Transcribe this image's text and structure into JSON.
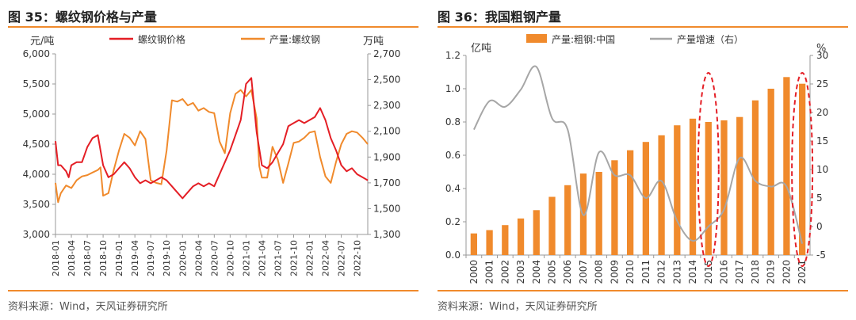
{
  "left": {
    "title": "图 35：螺纹钢价格与产量",
    "source": "资料来源：Wind，天风证券研究所",
    "unit_left": "元/吨",
    "unit_right": "万吨",
    "legend": [
      "螺纹钢价格",
      "产量:螺纹钢"
    ],
    "colors": {
      "price": "#E41E25",
      "output": "#F08A2C",
      "axis": "#999999"
    },
    "y_left_ticks": [
      "3,000",
      "3,500",
      "4,000",
      "4,500",
      "5,000",
      "5,500",
      "6,000"
    ],
    "y_right_ticks": [
      "1,300",
      "1,500",
      "1,700",
      "1,900",
      "2,100",
      "2,300",
      "2,500",
      "2,700"
    ],
    "x_ticks": [
      "2018-01",
      "2018-04",
      "2018-07",
      "2018-10",
      "2019-01",
      "2019-04",
      "2019-07",
      "2019-10",
      "2020-01",
      "2020-04",
      "2020-07",
      "2020-10",
      "2021-01",
      "2021-04",
      "2021-07",
      "2021-10",
      "2022-01",
      "2022-04",
      "2022-07",
      "2022-10"
    ],
    "chart_data": {
      "type": "line",
      "title": "图 35：螺纹钢价格与产量",
      "x_range": [
        0,
        59
      ],
      "ylim_left": [
        3000,
        6000
      ],
      "ylim_right": [
        1300,
        2700
      ],
      "series": [
        {
          "name": "螺纹钢价格",
          "axis": "left",
          "unit": "元/吨",
          "x": [
            0,
            0.5,
            1,
            2,
            2.5,
            3,
            4,
            5,
            6,
            7,
            8,
            8.7,
            9,
            10,
            11,
            12,
            13,
            14,
            15,
            16,
            17,
            18,
            19,
            20,
            21,
            22,
            23,
            24,
            25,
            26,
            27,
            28,
            29,
            30,
            31,
            32,
            33,
            34,
            35,
            36,
            37,
            38,
            39,
            40,
            41,
            42,
            43,
            44,
            45,
            46,
            47,
            48,
            49,
            50,
            51,
            52,
            53,
            54,
            55,
            56,
            57,
            58,
            59
          ],
          "values": [
            4550,
            4150,
            4150,
            4050,
            3950,
            4150,
            4200,
            4200,
            4450,
            4600,
            4650,
            4300,
            4150,
            3950,
            4000,
            4100,
            4200,
            4100,
            3950,
            3850,
            3900,
            3850,
            3900,
            3950,
            3900,
            3800,
            3700,
            3600,
            3700,
            3800,
            3850,
            3800,
            3850,
            3800,
            4000,
            4200,
            4400,
            4650,
            4900,
            5500,
            5600,
            4700,
            4150,
            4100,
            4200,
            4350,
            4500,
            4800,
            4850,
            4900,
            4850,
            4900,
            4950,
            5100,
            4900,
            4600,
            4400,
            4150,
            4050,
            4100,
            4000,
            3950,
            3900
          ]
        },
        {
          "name": "产量:螺纹钢",
          "axis": "right",
          "unit": "万吨",
          "x": [
            0,
            0.5,
            1,
            2,
            3,
            4,
            5,
            6,
            7,
            8,
            8.5,
            9,
            10,
            11,
            12,
            13,
            14,
            15,
            16,
            17,
            18,
            19,
            20,
            21,
            22,
            23,
            24,
            25,
            26,
            27,
            28,
            29,
            30,
            31,
            32,
            33,
            34,
            35,
            36,
            37,
            38,
            38.5,
            39,
            40,
            41,
            42,
            43,
            44,
            45,
            46,
            47,
            48,
            49,
            50,
            51,
            52,
            53,
            54,
            55,
            56,
            57,
            58,
            59
          ],
          "values": [
            1700,
            1550,
            1620,
            1680,
            1660,
            1720,
            1750,
            1760,
            1780,
            1800,
            1820,
            1600,
            1620,
            1800,
            1950,
            2080,
            2050,
            1990,
            2100,
            2040,
            1720,
            1700,
            1690,
            1950,
            2340,
            2330,
            2350,
            2300,
            2320,
            2260,
            2280,
            2250,
            2240,
            2020,
            1930,
            2240,
            2390,
            2420,
            2370,
            2420,
            2200,
            1830,
            1740,
            1740,
            1980,
            1880,
            1700,
            1850,
            2010,
            2020,
            2050,
            2090,
            2100,
            1900,
            1750,
            1700,
            1860,
            2000,
            2080,
            2100,
            2090,
            2050,
            2000
          ]
        }
      ]
    }
  },
  "right": {
    "title": "图 36：我国粗钢产量",
    "source": "资料来源：Wind，天风证券研究所",
    "unit_left": "亿吨",
    "unit_right": "%",
    "legend": [
      "产量:粗钢:中国",
      "产量增速（右）"
    ],
    "colors": {
      "bar": "#F08A2C",
      "line": "#A6A6A6",
      "ellipse": "#E41E25"
    },
    "y_left_ticks": [
      "0.0",
      "0.2",
      "0.4",
      "0.6",
      "0.8",
      "1.0",
      "1.2"
    ],
    "y_right_ticks": [
      "-5",
      "0",
      "5",
      "10",
      "15",
      "20",
      "25",
      "30"
    ],
    "chart_data": {
      "type": "bar",
      "title": "图 36：我国粗钢产量",
      "categories": [
        "2000",
        "2001",
        "2002",
        "2003",
        "2004",
        "2005",
        "2006",
        "2007",
        "2008",
        "2009",
        "2010",
        "2011",
        "2012",
        "2013",
        "2014",
        "2015",
        "2016",
        "2017",
        "2018",
        "2019",
        "2020",
        "2021"
      ],
      "ylim_left": [
        0,
        1.2
      ],
      "ylim_right": [
        -5,
        30
      ],
      "series": [
        {
          "name": "产量:粗钢:中国",
          "type": "bar",
          "axis": "left",
          "unit": "亿吨",
          "values": [
            0.13,
            0.15,
            0.18,
            0.22,
            0.27,
            0.35,
            0.42,
            0.49,
            0.5,
            0.57,
            0.63,
            0.68,
            0.72,
            0.78,
            0.82,
            0.8,
            0.81,
            0.83,
            0.93,
            1.0,
            1.07,
            1.03
          ]
        },
        {
          "name": "产量增速（右）",
          "type": "line",
          "axis": "right",
          "unit": "%",
          "values": [
            17,
            22,
            21,
            24,
            28,
            19,
            17,
            2,
            13,
            9,
            9,
            5,
            8,
            1,
            -2.5,
            0,
            3,
            12,
            8,
            7,
            7,
            -3
          ]
        }
      ],
      "annotations": [
        "2015",
        "2021"
      ]
    }
  }
}
